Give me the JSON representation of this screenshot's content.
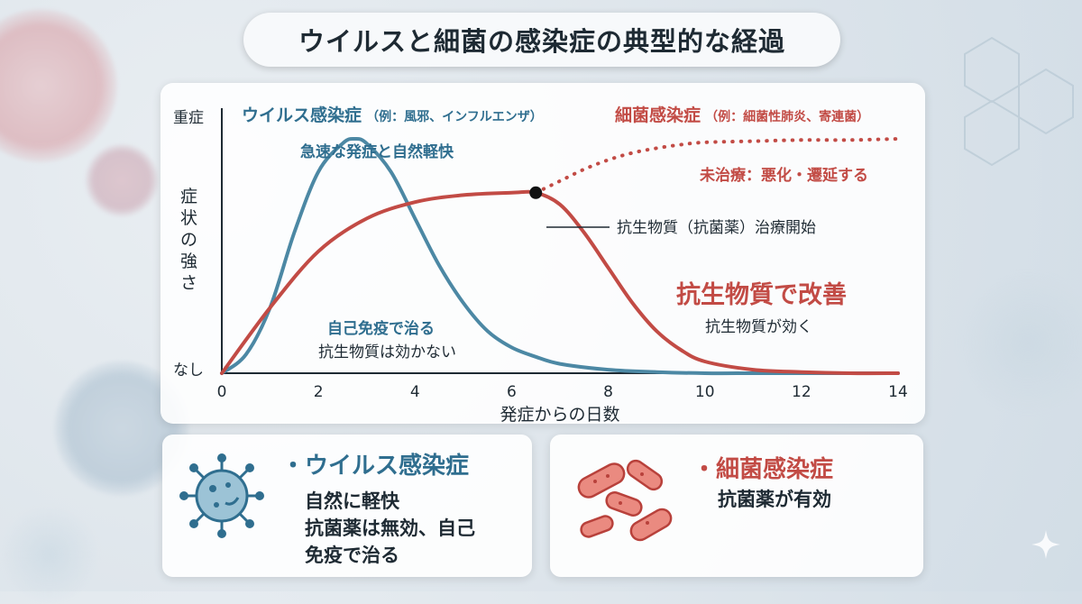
{
  "title": "ウイルスと細菌の感染症の典型的な経過",
  "colors": {
    "virus": "#4c88a4",
    "bacteria": "#c24b45",
    "text": "#1e2a33"
  },
  "chart_data": {
    "type": "line",
    "xlabel": "発症からの日数",
    "ylabel": "症状の強さ",
    "y_top_label": "重症",
    "y_bottom_label": "なし",
    "xlim": [
      0,
      14
    ],
    "ylim": [
      0,
      1
    ],
    "x_ticks": [
      "0",
      "2",
      "4",
      "6",
      "8",
      "10",
      "12",
      "14"
    ],
    "series_headings": {
      "virus": {
        "main": "ウイルス感染症",
        "example": "（例：風邪、インフルエンザ）"
      },
      "bacteria": {
        "main": "細菌感染症",
        "example": "（例：細菌性肺炎、寄連菌）"
      }
    },
    "series": [
      {
        "key": "virus",
        "style": "solid",
        "x": [
          0,
          0.5,
          1,
          1.5,
          2,
          2.5,
          2.75,
          3,
          3.5,
          4,
          4.5,
          5,
          5.5,
          6,
          6.5,
          7,
          8,
          9,
          10,
          11,
          12,
          13,
          14
        ],
        "y": [
          0,
          0.08,
          0.28,
          0.6,
          0.86,
          0.98,
          1.0,
          0.98,
          0.86,
          0.66,
          0.46,
          0.3,
          0.18,
          0.11,
          0.07,
          0.04,
          0.015,
          0.005,
          0,
          0,
          0,
          0,
          0
        ]
      },
      {
        "key": "bacteria_treated",
        "style": "solid",
        "x": [
          0,
          1,
          2,
          3,
          4,
          5,
          6,
          6.5,
          7,
          7.5,
          8,
          8.5,
          9,
          9.5,
          10,
          11,
          12,
          13,
          14
        ],
        "y": [
          0,
          0.28,
          0.52,
          0.66,
          0.73,
          0.76,
          0.77,
          0.77,
          0.72,
          0.6,
          0.45,
          0.3,
          0.18,
          0.1,
          0.05,
          0.015,
          0.005,
          0,
          0
        ]
      },
      {
        "key": "bacteria_untreated",
        "style": "dotted",
        "x": [
          6.5,
          7,
          7.5,
          8,
          8.5,
          9,
          9.5,
          10,
          11,
          12,
          13,
          14
        ],
        "y": [
          0.77,
          0.82,
          0.87,
          0.91,
          0.94,
          0.96,
          0.975,
          0.985,
          0.99,
          0.995,
          0.995,
          1.0
        ]
      }
    ],
    "treatment_point": {
      "x": 6.5,
      "y": 0.77
    },
    "annotations": {
      "virus_peak": "急速な発症と自然軽快",
      "virus_recovery_1": "自己免疫で治る",
      "virus_recovery_2": "抗生物質は効かない",
      "untreated": "未治療：悪化・遷延する",
      "treatment_start": "抗生物質（抗菌薬）治療開始",
      "treated_main": "抗生物質で改善",
      "treated_sub": "抗生物質が効く"
    }
  },
  "cards": {
    "virus": {
      "title": "・ウイルス感染症",
      "lines": [
        "自然に軽快",
        "抗菌薬は無効、自己",
        "免疫で治る"
      ],
      "icon": "virus-icon"
    },
    "bacteria": {
      "title": "・細菌感染症",
      "lines": [
        "抗菌薬が有効"
      ],
      "icon": "bacteria-icon"
    }
  }
}
